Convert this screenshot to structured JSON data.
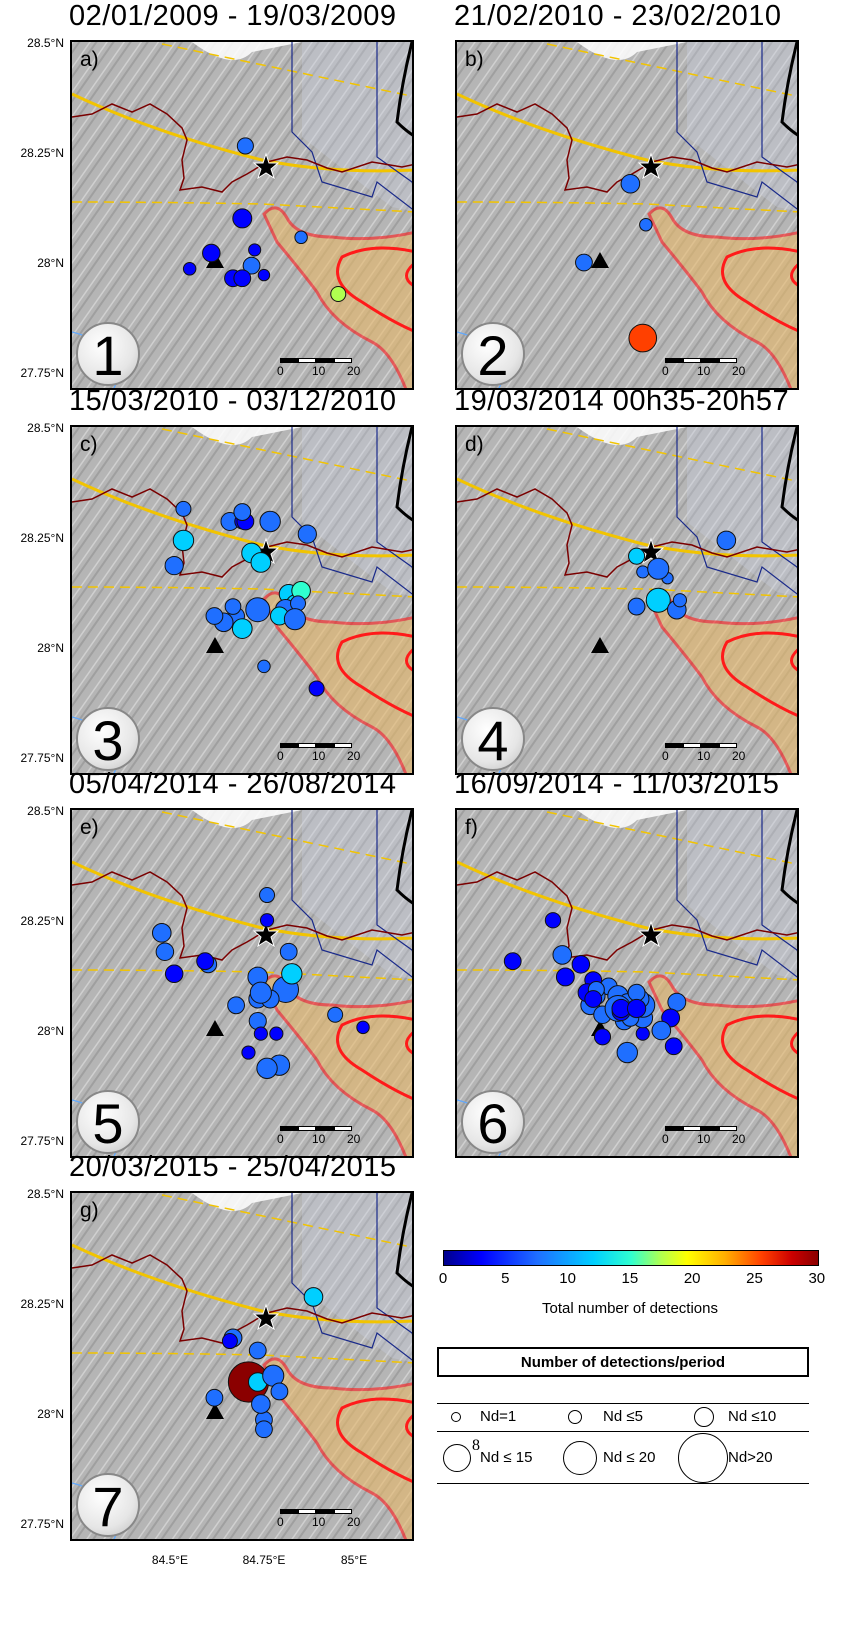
{
  "panels": [
    {
      "title": "02/01/2009 - 19/03/2009",
      "letter": "a)",
      "number": "1"
    },
    {
      "title": "21/02/2010 - 23/02/2010",
      "letter": "b)",
      "number": "2"
    },
    {
      "title": "15/03/2010 - 03/12/2010",
      "letter": "c)",
      "number": "3"
    },
    {
      "title": "19/03/2014   00h35-20h57",
      "letter": "d)",
      "number": "4"
    },
    {
      "title": "05/04/2014 - 26/08/2014",
      "letter": "e)",
      "number": "5"
    },
    {
      "title": "16/09/2014 - 11/03/2015",
      "letter": "f)",
      "number": "6"
    },
    {
      "title": "20/03/2015 - 25/04/2015",
      "letter": "g)",
      "number": "7"
    }
  ],
  "lat_labels": [
    "28.5°N",
    "28.25°N",
    "28°N",
    "27.75°N"
  ],
  "lon_labels": [
    "84.5°E",
    "84.75°E",
    "85°E"
  ],
  "scalebar": {
    "ticks": [
      "0",
      "10",
      "20"
    ]
  },
  "colorbar": {
    "ticks": [
      "0",
      "5",
      "10",
      "15",
      "20",
      "25",
      "30"
    ],
    "label": "Total number of detections",
    "colors": [
      "#00008b",
      "#0000ff",
      "#1f6fff",
      "#00cfff",
      "#30ffd0",
      "#b0ff50",
      "#ffff00",
      "#ffb000",
      "#ff4000",
      "#cc0000",
      "#8b0000"
    ]
  },
  "legend": {
    "title": "Number of detections/period",
    "items": [
      "Nd=1",
      "Nd ≤5",
      "Nd ≤10",
      "Nd ≤ 15",
      "Nd ≤ 20",
      "Nd>20"
    ],
    "stray_mark": "8"
  },
  "map_style": {
    "terrain": "#b5b5b5",
    "fault_color": "#f2c400",
    "basin_outline": "#7a0000",
    "zone_outline": "#ff1a1a",
    "zone_fill": "#e8b868",
    "border_blue": "#1a2a8a",
    "star": "#000000",
    "triangle": "#000000"
  },
  "events": [
    [
      [
        0.86,
        0.8,
        0.25,
        14
      ],
      [
        0.74,
        0.62,
        0.18,
        6
      ],
      [
        0.58,
        0.71,
        0.3,
        5
      ],
      [
        0.52,
        0.75,
        0.3,
        4
      ],
      [
        0.55,
        0.75,
        0.3,
        4
      ],
      [
        0.62,
        0.74,
        0.15,
        4
      ],
      [
        0.56,
        0.33,
        0.28,
        6
      ],
      [
        0.45,
        0.67,
        0.32,
        4
      ],
      [
        0.59,
        0.66,
        0.17,
        4
      ],
      [
        0.38,
        0.72,
        0.18,
        4
      ],
      [
        0.55,
        0.56,
        0.36,
        4
      ]
    ],
    [
      [
        0.6,
        0.94,
        0.6,
        24
      ],
      [
        0.61,
        0.58,
        0.18,
        5
      ],
      [
        0.41,
        0.7,
        0.3,
        5
      ],
      [
        0.56,
        0.45,
        0.35,
        7
      ]
    ],
    [
      [
        0.33,
        0.44,
        0.34,
        7
      ],
      [
        0.62,
        0.76,
        0.18,
        7
      ],
      [
        0.76,
        0.34,
        0.34,
        7
      ],
      [
        0.7,
        0.53,
        0.36,
        10
      ],
      [
        0.72,
        0.56,
        0.3,
        8
      ],
      [
        0.74,
        0.52,
        0.35,
        12
      ],
      [
        0.71,
        0.6,
        0.32,
        9
      ],
      [
        0.69,
        0.58,
        0.4,
        7
      ],
      [
        0.67,
        0.6,
        0.33,
        8
      ],
      [
        0.61,
        0.57,
        0.22,
        6
      ],
      [
        0.53,
        0.6,
        0.3,
        5
      ],
      [
        0.55,
        0.64,
        0.38,
        8
      ],
      [
        0.49,
        0.62,
        0.35,
        6
      ],
      [
        0.46,
        0.6,
        0.3,
        6
      ],
      [
        0.52,
        0.57,
        0.27,
        6
      ],
      [
        0.58,
        0.4,
        0.38,
        8
      ],
      [
        0.51,
        0.3,
        0.33,
        6
      ],
      [
        0.55,
        0.3,
        0.25,
        4
      ],
      [
        0.56,
        0.3,
        0.3,
        4
      ],
      [
        0.36,
        0.26,
        0.25,
        6
      ],
      [
        0.36,
        0.36,
        0.4,
        9
      ],
      [
        0.55,
        0.27,
        0.3,
        5
      ],
      [
        0.64,
        0.3,
        0.4,
        7
      ],
      [
        0.73,
        0.56,
        0.25,
        5
      ],
      [
        0.79,
        0.83,
        0.25,
        4
      ],
      [
        0.72,
        0.61,
        0.42,
        7
      ],
      [
        0.6,
        0.58,
        0.5,
        6
      ],
      [
        0.61,
        0.43,
        0.38,
        8
      ]
    ],
    [
      [
        0.6,
        0.46,
        0.17,
        6
      ],
      [
        0.65,
        0.55,
        0.5,
        9
      ],
      [
        0.68,
        0.48,
        0.15,
        5
      ],
      [
        0.71,
        0.58,
        0.35,
        6
      ],
      [
        0.72,
        0.55,
        0.2,
        6
      ],
      [
        0.58,
        0.57,
        0.3,
        5
      ],
      [
        0.58,
        0.41,
        0.28,
        9
      ],
      [
        0.87,
        0.36,
        0.35,
        7
      ],
      [
        0.65,
        0.45,
        0.42,
        5
      ]
    ],
    [
      [
        0.3,
        0.45,
        0.32,
        7
      ],
      [
        0.29,
        0.39,
        0.35,
        7
      ],
      [
        0.53,
        0.62,
        0.3,
        7
      ],
      [
        0.85,
        0.65,
        0.25,
        5
      ],
      [
        0.63,
        0.35,
        0.2,
        4
      ],
      [
        0.63,
        0.27,
        0.25,
        6
      ],
      [
        0.6,
        0.53,
        0.38,
        7
      ],
      [
        0.6,
        0.6,
        0.33,
        6
      ],
      [
        0.6,
        0.67,
        0.31,
        6
      ],
      [
        0.61,
        0.71,
        0.2,
        4
      ],
      [
        0.69,
        0.57,
        0.55,
        6
      ],
      [
        0.7,
        0.45,
        0.3,
        7
      ],
      [
        0.71,
        0.52,
        0.4,
        8
      ],
      [
        0.44,
        0.49,
        0.3,
        7
      ],
      [
        0.43,
        0.48,
        0.3,
        4
      ],
      [
        0.64,
        0.6,
        0.33,
        5
      ],
      [
        0.66,
        0.71,
        0.2,
        4
      ],
      [
        0.67,
        0.81,
        0.4,
        5
      ],
      [
        0.63,
        0.82,
        0.4,
        7
      ],
      [
        0.33,
        0.52,
        0.32,
        4
      ],
      [
        0.94,
        0.69,
        0.18,
        4
      ],
      [
        0.57,
        0.77,
        0.2,
        4
      ],
      [
        0.61,
        0.58,
        0.42,
        7
      ]
    ],
    [
      [
        0.31,
        0.35,
        0.26,
        4
      ],
      [
        0.18,
        0.48,
        0.3,
        4
      ],
      [
        0.34,
        0.46,
        0.35,
        6
      ],
      [
        0.35,
        0.53,
        0.33,
        4
      ],
      [
        0.4,
        0.49,
        0.32,
        4
      ],
      [
        0.44,
        0.54,
        0.3,
        4
      ],
      [
        0.49,
        0.56,
        0.3,
        6
      ],
      [
        0.52,
        0.59,
        0.4,
        7
      ],
      [
        0.43,
        0.62,
        0.35,
        6
      ],
      [
        0.47,
        0.65,
        0.32,
        5
      ],
      [
        0.42,
        0.58,
        0.33,
        4
      ],
      [
        0.45,
        0.59,
        0.32,
        6
      ],
      [
        0.45,
        0.57,
        0.28,
        5
      ],
      [
        0.44,
        0.6,
        0.3,
        4
      ],
      [
        0.47,
        0.72,
        0.28,
        4
      ],
      [
        0.55,
        0.77,
        0.4,
        5
      ],
      [
        0.6,
        0.71,
        0.2,
        4
      ],
      [
        0.6,
        0.66,
        0.38,
        7
      ],
      [
        0.6,
        0.62,
        0.5,
        6
      ],
      [
        0.59,
        0.6,
        0.35,
        7
      ],
      [
        0.55,
        0.61,
        0.3,
        5
      ],
      [
        0.58,
        0.58,
        0.3,
        5
      ],
      [
        0.54,
        0.67,
        0.32,
        7
      ],
      [
        0.56,
        0.66,
        0.3,
        5
      ],
      [
        0.52,
        0.63,
        0.55,
        6
      ],
      [
        0.53,
        0.64,
        0.33,
        4
      ],
      [
        0.53,
        0.63,
        0.34,
        4
      ],
      [
        0.58,
        0.63,
        0.34,
        4
      ],
      [
        0.71,
        0.61,
        0.33,
        5
      ],
      [
        0.69,
        0.66,
        0.33,
        4
      ],
      [
        0.66,
        0.7,
        0.35,
        6
      ],
      [
        0.7,
        0.75,
        0.3,
        4
      ]
    ],
    [
      [
        0.57,
        0.6,
        0.95,
        30
      ],
      [
        0.6,
        0.6,
        0.35,
        9
      ],
      [
        0.78,
        0.33,
        0.35,
        8
      ],
      [
        0.65,
        0.58,
        0.42,
        6
      ],
      [
        0.62,
        0.72,
        0.3,
        5
      ],
      [
        0.6,
        0.5,
        0.3,
        5
      ],
      [
        0.52,
        0.46,
        0.33,
        5
      ],
      [
        0.51,
        0.47,
        0.25,
        4
      ],
      [
        0.67,
        0.63,
        0.3,
        6
      ],
      [
        0.61,
        0.67,
        0.35,
        7
      ],
      [
        0.62,
        0.75,
        0.3,
        5
      ],
      [
        0.46,
        0.65,
        0.3,
        5
      ]
    ]
  ]
}
